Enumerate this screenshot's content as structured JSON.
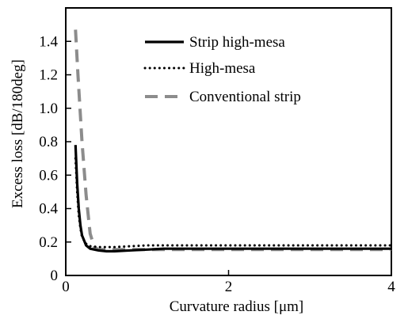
{
  "chart_data": {
    "type": "line",
    "xlabel": "Curvature radius [μm]",
    "ylabel": "Excess loss [dB/180deg]",
    "xlim": [
      0,
      4
    ],
    "ylim": [
      0,
      1.6
    ],
    "x_ticks": [
      0,
      2,
      4
    ],
    "x_tick_labels": [
      "0",
      "2",
      "4"
    ],
    "y_ticks": [
      0,
      0.2,
      0.4,
      0.6,
      0.8,
      1.0,
      1.2,
      1.4
    ],
    "y_tick_labels": [
      "0",
      "0.2",
      "0.4",
      "0.6",
      "0.8",
      "1.0",
      "1.2",
      "1.4"
    ],
    "grid": false,
    "legend_position": "top-right",
    "series": [
      {
        "name": "Strip high-mesa",
        "color": "#000000",
        "style": "solid",
        "x": [
          0.12,
          0.14,
          0.16,
          0.18,
          0.2,
          0.25,
          0.3,
          0.4,
          0.5,
          0.6,
          0.8,
          1.0,
          1.2,
          1.5,
          2.0,
          2.5,
          3.0,
          3.5,
          4.0
        ],
        "y": [
          0.78,
          0.55,
          0.4,
          0.3,
          0.24,
          0.18,
          0.16,
          0.15,
          0.145,
          0.145,
          0.15,
          0.155,
          0.16,
          0.16,
          0.16,
          0.16,
          0.16,
          0.16,
          0.16
        ]
      },
      {
        "name": "High-mesa",
        "color": "#000000",
        "style": "dotted",
        "x": [
          0.12,
          0.14,
          0.16,
          0.18,
          0.2,
          0.25,
          0.3,
          0.4,
          0.5,
          0.6,
          0.8,
          1.0,
          1.2,
          1.5,
          2.0,
          2.5,
          3.0,
          3.5,
          4.0
        ],
        "y": [
          0.7,
          0.5,
          0.36,
          0.28,
          0.23,
          0.19,
          0.175,
          0.17,
          0.17,
          0.17,
          0.175,
          0.18,
          0.18,
          0.18,
          0.18,
          0.18,
          0.18,
          0.18,
          0.18
        ]
      },
      {
        "name": "Conventional strip",
        "color": "#8c8c8c",
        "style": "dashed",
        "x": [
          0.12,
          0.15,
          0.2,
          0.25,
          0.3,
          0.35,
          0.4,
          0.5,
          0.7,
          1.0,
          1.5,
          2.0,
          2.5,
          3.0,
          3.5,
          4.0
        ],
        "y": [
          1.47,
          1.2,
          0.8,
          0.48,
          0.25,
          0.17,
          0.155,
          0.155,
          0.155,
          0.155,
          0.155,
          0.155,
          0.155,
          0.155,
          0.155,
          0.155
        ]
      }
    ]
  }
}
